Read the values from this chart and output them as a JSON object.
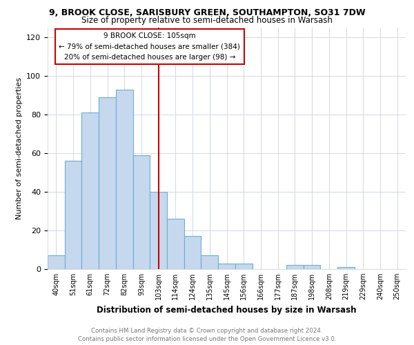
{
  "title1": "9, BROOK CLOSE, SARISBURY GREEN, SOUTHAMPTON, SO31 7DW",
  "title2": "Size of property relative to semi-detached houses in Warsash",
  "xlabel": "Distribution of semi-detached houses by size in Warsash",
  "ylabel": "Number of semi-detached properties",
  "annotation_title": "9 BROOK CLOSE: 105sqm",
  "annotation_line1": "← 79% of semi-detached houses are smaller (384)",
  "annotation_line2": "20% of semi-detached houses are larger (98) →",
  "footer": "Contains HM Land Registry data © Crown copyright and database right 2024.\nContains public sector information licensed under the Open Government Licence v3.0.",
  "categories": [
    "40sqm",
    "51sqm",
    "61sqm",
    "72sqm",
    "82sqm",
    "93sqm",
    "103sqm",
    "114sqm",
    "124sqm",
    "135sqm",
    "145sqm",
    "156sqm",
    "166sqm",
    "177sqm",
    "187sqm",
    "198sqm",
    "208sqm",
    "219sqm",
    "229sqm",
    "240sqm",
    "250sqm"
  ],
  "values": [
    7,
    56,
    81,
    89,
    93,
    59,
    40,
    26,
    17,
    7,
    3,
    3,
    0,
    0,
    2,
    2,
    0,
    1,
    0,
    0,
    0
  ],
  "bar_color": "#c5d8ed",
  "bar_edge_color": "#6aaed6",
  "vline_index": 6,
  "vline_color": "#cc0000",
  "annotation_box_facecolor": "#ffffff",
  "annotation_box_edge": "#cc0000",
  "ylim": [
    0,
    125
  ],
  "yticks": [
    0,
    20,
    40,
    60,
    80,
    100,
    120
  ],
  "grid_color": "#d0d8e8",
  "bg_color": "#ffffff",
  "title1_fontsize": 9,
  "title2_fontsize": 8.5
}
